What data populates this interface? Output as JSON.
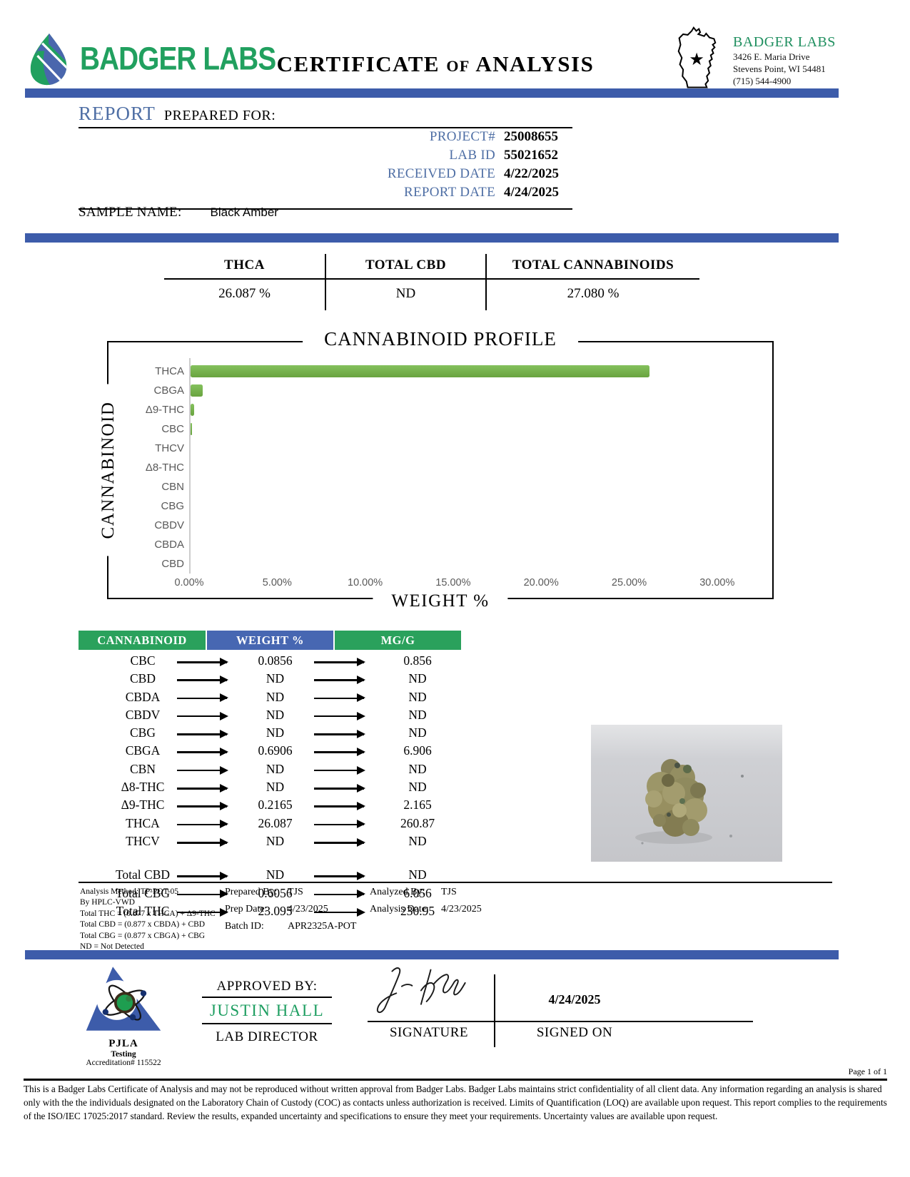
{
  "header": {
    "logo_text": "BADGER LABS",
    "title": "CERTIFICATE of ANALYSIS",
    "lab_info": {
      "name": "BADGER LABS",
      "address_line1": "3426 E. Maria Drive",
      "address_line2": "Stevens Point, WI 54481",
      "phone": "(715) 544-4900"
    }
  },
  "report": {
    "section_title": "REPORT",
    "section_subtitle": "PREPARED FOR:",
    "fields": [
      {
        "label": "PROJECT#",
        "value": "25008655"
      },
      {
        "label": "LAB ID",
        "value": "55021652"
      },
      {
        "label": "RECEIVED DATE",
        "value": "4/22/2025"
      },
      {
        "label": "REPORT DATE",
        "value": "4/24/2025"
      }
    ],
    "sample_name_label": "SAMPLE NAME:",
    "sample_name": "Black Amber"
  },
  "summary": {
    "columns": [
      {
        "label": "THCA",
        "value": "26.087 %"
      },
      {
        "label": "TOTAL CBD",
        "value": "ND"
      },
      {
        "label": "TOTAL CANNABINOIDS",
        "value": "27.080 %"
      }
    ]
  },
  "chart_data": {
    "type": "bar",
    "orientation": "horizontal",
    "title": "CANNABINOID PROFILE",
    "xlabel": "WEIGHT %",
    "ylabel": "CANNABINOID",
    "categories": [
      "THCA",
      "CBGA",
      "Δ9-THC",
      "CBC",
      "THCV",
      "Δ8-THC",
      "CBN",
      "CBG",
      "CBDV",
      "CBDA",
      "CBD"
    ],
    "values": [
      26.087,
      0.6906,
      0.2165,
      0.0856,
      0,
      0,
      0,
      0,
      0,
      0,
      0
    ],
    "xlim": [
      0,
      30
    ],
    "x_ticks": [
      "0.00%",
      "5.00%",
      "10.00%",
      "15.00%",
      "20.00%",
      "25.00%",
      "30.00%"
    ],
    "grid": false,
    "bar_color": "#71ac48"
  },
  "table": {
    "headers": [
      "CANNABINOID",
      "WEIGHT %",
      "MG/G"
    ],
    "rows": [
      {
        "name": "CBC",
        "weight": "0.0856",
        "mg": "0.856"
      },
      {
        "name": "CBD",
        "weight": "ND",
        "mg": "ND"
      },
      {
        "name": "CBDA",
        "weight": "ND",
        "mg": "ND"
      },
      {
        "name": "CBDV",
        "weight": "ND",
        "mg": "ND"
      },
      {
        "name": "CBG",
        "weight": "ND",
        "mg": "ND"
      },
      {
        "name": "CBGA",
        "weight": "0.6906",
        "mg": "6.906"
      },
      {
        "name": "CBN",
        "weight": "ND",
        "mg": "ND"
      },
      {
        "name": "Δ8-THC",
        "weight": "ND",
        "mg": "ND"
      },
      {
        "name": "Δ9-THC",
        "weight": "0.2165",
        "mg": "2.165"
      },
      {
        "name": "THCA",
        "weight": "26.087",
        "mg": "260.87"
      },
      {
        "name": "THCV",
        "weight": "ND",
        "mg": "ND"
      }
    ],
    "totals": [
      {
        "name": "Total CBD",
        "weight": "ND",
        "mg": "ND"
      },
      {
        "name": "Total CBG",
        "weight": "0.6056",
        "mg": "6.056"
      },
      {
        "name": "Total THC",
        "weight": "23.095",
        "mg": "230.95"
      }
    ]
  },
  "notes": {
    "method_lines": [
      "Analysis Method: TP-POT-05",
      "By HPLC-VWD",
      "Total THC = (0.877 x  THCA) + Δ9-THC",
      "Total CBD = (0.877 x  CBDA) + CBD",
      "Total CBG = (0.877 x  CBGA) + CBG",
      "ND = Not Detected"
    ],
    "prepared_by_label": "Prepared By:",
    "prepared_by": "TJS",
    "prep_date_label": "Prep Date:",
    "prep_date": "4/23/2025",
    "batch_id_label": "Batch ID:",
    "batch_id": "APR2325A-POT",
    "analyzed_by_label": "Analyzed By:",
    "analyzed_by": "TJS",
    "analysis_date_label": "Analysis Date:",
    "analysis_date": "4/23/2025"
  },
  "approval": {
    "approved_by_label": "APPROVED BY:",
    "approver_name": "JUSTIN HALL",
    "approver_title": "LAB DIRECTOR",
    "signature_label": "SIGNATURE",
    "signed_on_label": "SIGNED ON",
    "signed_on_date": "4/24/2025"
  },
  "accreditation": {
    "org": "PJLA",
    "line1": "Testing",
    "line2": "Accreditation# 115522"
  },
  "footer": {
    "page": "Page 1 of 1",
    "disclaimer": "This is a Badger Labs Certificate of Analysis and may not be reproduced without written approval from Badger Labs. Badger Labs maintains strict confidentiality of all client data. Any information regarding an analysis is shared only with the the individuals designated on the Laboratory Chain of Custody (COC) as contacts unless authorization is received. Limits of Quantification (LOQ) are available upon request. This report complies to the requirements of the ISO/IEC 17025:2017 standard. Review the results, expanded uncertainty and specifications to ensure they meet your requirements. Uncertainty values are available upon request."
  },
  "colors": {
    "band_blue": "#3d5caa",
    "header_green": "#2aa15c",
    "header_blue": "#4767b2",
    "bar_green": "#71ac48",
    "label_blue": "#4f6fa5",
    "brand_green": "#21a05f"
  }
}
